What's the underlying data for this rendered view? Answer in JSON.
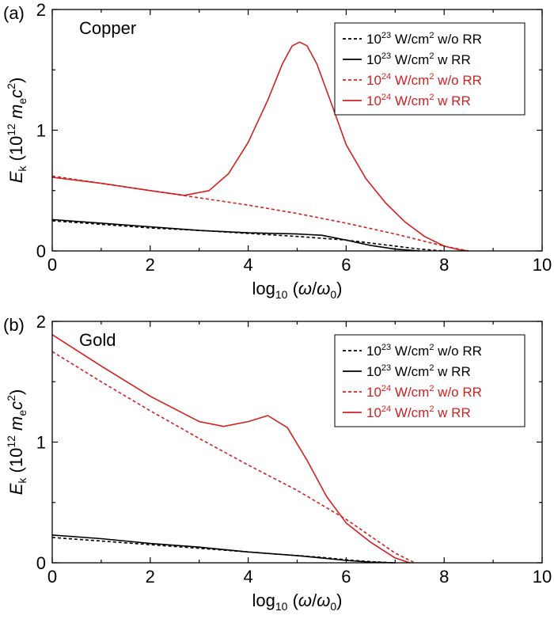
{
  "chart_data": [
    {
      "type": "line",
      "panel_label": "(a)",
      "annotation": "Copper",
      "xlabel": {
        "main": "log",
        "sub": "10",
        "rest_open": " (",
        "omega": "ω",
        "slash": "/",
        "omega0": "ω",
        "omega0_sub": "0",
        "rest_close": ")"
      },
      "ylabel": {
        "E": "E",
        "E_sub": "k",
        "open": " (10",
        "exp": "12",
        "me": " m",
        "me_sub": "e",
        "c": "c",
        "c_sup": "2",
        "close": ")"
      },
      "xlim": [
        0,
        10
      ],
      "ylim": [
        0,
        2
      ],
      "xticks": [
        0,
        2,
        4,
        6,
        8,
        10
      ],
      "yticks": [
        0,
        1,
        2
      ],
      "grid": false,
      "legend_position": "top-right",
      "series": [
        {
          "name_parts": {
            "base": "10",
            "exp": "23",
            "unit": " W/cm",
            "unit_exp": "2",
            "tail": " w/o RR"
          },
          "color": "#000000",
          "dash": true,
          "x": [
            0,
            1,
            2,
            3,
            4,
            5,
            6,
            6.5,
            7,
            7.5,
            8
          ],
          "y": [
            0.25,
            0.22,
            0.19,
            0.17,
            0.145,
            0.12,
            0.09,
            0.065,
            0.04,
            0.015,
            0.0
          ]
        },
        {
          "name_parts": {
            "base": "10",
            "exp": "23",
            "unit": " W/cm",
            "unit_exp": "2",
            "tail": " w RR"
          },
          "color": "#000000",
          "dash": false,
          "x": [
            0,
            1,
            2,
            3,
            4,
            5,
            5.5,
            6,
            6.5,
            7,
            7.5
          ],
          "y": [
            0.26,
            0.23,
            0.2,
            0.17,
            0.15,
            0.14,
            0.13,
            0.09,
            0.045,
            0.015,
            0.0
          ]
        },
        {
          "name_parts": {
            "base": "10",
            "exp": "24",
            "unit": " W/cm",
            "unit_exp": "2",
            "tail": " w/o RR"
          },
          "color": "#d32020",
          "dash": true,
          "x": [
            0,
            1,
            2,
            3,
            4,
            5,
            6,
            7,
            7.5,
            8,
            8.5
          ],
          "y": [
            0.62,
            0.56,
            0.5,
            0.44,
            0.38,
            0.31,
            0.23,
            0.14,
            0.09,
            0.04,
            0.0
          ]
        },
        {
          "name_parts": {
            "base": "10",
            "exp": "24",
            "unit": " W/cm",
            "unit_exp": "2",
            "tail": " w RR"
          },
          "color": "#d32020",
          "dash": false,
          "x": [
            0,
            1,
            2,
            2.7,
            3.2,
            3.6,
            4.0,
            4.4,
            4.7,
            4.9,
            5.05,
            5.2,
            5.4,
            5.7,
            6.0,
            6.4,
            6.8,
            7.2,
            7.6,
            8.0,
            8.3,
            8.5
          ],
          "y": [
            0.61,
            0.56,
            0.5,
            0.46,
            0.5,
            0.64,
            0.9,
            1.25,
            1.55,
            1.7,
            1.73,
            1.7,
            1.55,
            1.22,
            0.88,
            0.6,
            0.4,
            0.24,
            0.12,
            0.04,
            0.01,
            0.0
          ]
        }
      ]
    },
    {
      "type": "line",
      "panel_label": "(b)",
      "annotation": "Gold",
      "xlabel": {
        "main": "log",
        "sub": "10",
        "rest_open": " (",
        "omega": "ω",
        "slash": "/",
        "omega0": "ω",
        "omega0_sub": "0",
        "rest_close": ")"
      },
      "ylabel": {
        "E": "E",
        "E_sub": "k",
        "open": " (10",
        "exp": "12",
        "me": " m",
        "me_sub": "e",
        "c": "c",
        "c_sup": "2",
        "close": ")"
      },
      "xlim": [
        0,
        10
      ],
      "ylim": [
        0,
        2
      ],
      "xticks": [
        0,
        2,
        4,
        6,
        8,
        10
      ],
      "yticks": [
        0,
        1,
        2
      ],
      "grid": false,
      "legend_position": "top-right",
      "series": [
        {
          "name_parts": {
            "base": "10",
            "exp": "23",
            "unit": " W/cm",
            "unit_exp": "2",
            "tail": " w/o RR"
          },
          "color": "#000000",
          "dash": true,
          "x": [
            0,
            1,
            2,
            3,
            4,
            5,
            5.5,
            6,
            6.5,
            7
          ],
          "y": [
            0.21,
            0.18,
            0.15,
            0.12,
            0.09,
            0.06,
            0.045,
            0.025,
            0.01,
            0.0
          ]
        },
        {
          "name_parts": {
            "base": "10",
            "exp": "23",
            "unit": " W/cm",
            "unit_exp": "2",
            "tail": " w RR"
          },
          "color": "#000000",
          "dash": false,
          "x": [
            0,
            1,
            2,
            3,
            4,
            5,
            5.5,
            6,
            6.5,
            7
          ],
          "y": [
            0.23,
            0.2,
            0.16,
            0.13,
            0.09,
            0.06,
            0.04,
            0.02,
            0.005,
            0.0
          ]
        },
        {
          "name_parts": {
            "base": "10",
            "exp": "24",
            "unit": " W/cm",
            "unit_exp": "2",
            "tail": " w/o RR"
          },
          "color": "#d32020",
          "dash": true,
          "x": [
            0,
            1,
            2,
            3,
            4,
            5,
            6,
            7,
            7.4
          ],
          "y": [
            1.75,
            1.5,
            1.26,
            1.03,
            0.81,
            0.6,
            0.36,
            0.08,
            0.0
          ]
        },
        {
          "name_parts": {
            "base": "10",
            "exp": "24",
            "unit": " W/cm",
            "unit_exp": "2",
            "tail": " w RR"
          },
          "color": "#d32020",
          "dash": false,
          "x": [
            0,
            1,
            2,
            3,
            3.5,
            4.0,
            4.4,
            4.8,
            5.2,
            5.6,
            6.0,
            6.5,
            7.0,
            7.3
          ],
          "y": [
            1.89,
            1.63,
            1.38,
            1.17,
            1.13,
            1.17,
            1.22,
            1.12,
            0.85,
            0.55,
            0.33,
            0.17,
            0.04,
            0.0
          ]
        }
      ]
    }
  ]
}
